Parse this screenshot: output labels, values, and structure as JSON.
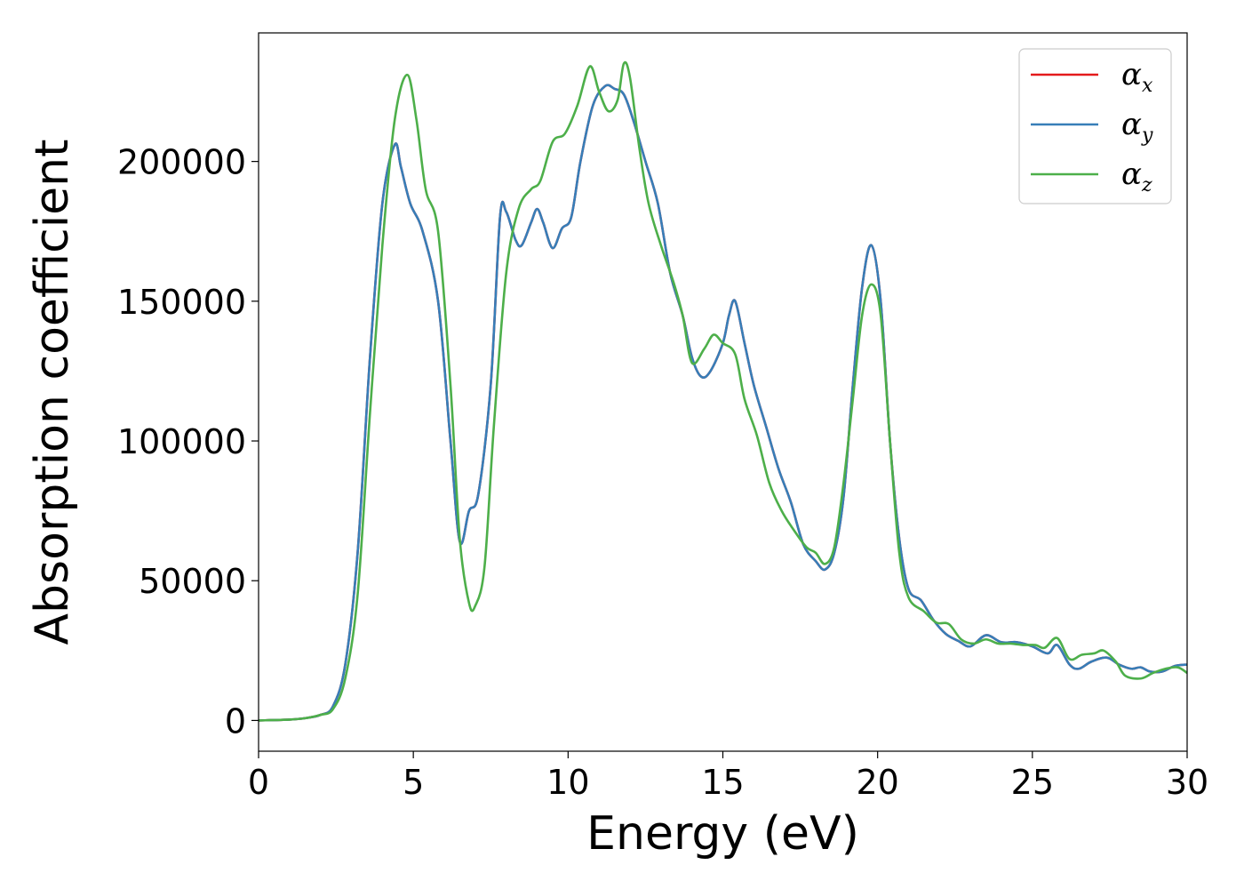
{
  "chart_data": {
    "type": "line",
    "title": "",
    "xlabel": "Energy (eV)",
    "ylabel": "Absorption coefficient",
    "xlim": [
      0,
      30
    ],
    "ylim": [
      -11000,
      246000
    ],
    "xticks": [
      0,
      5,
      10,
      15,
      20,
      25,
      30
    ],
    "yticks": [
      0,
      50000,
      100000,
      150000,
      200000
    ],
    "grid": false,
    "legend_position": "top-right",
    "series": [
      {
        "name": "α",
        "subscript": "x",
        "color": "#e41a1c",
        "points": [
          [
            0,
            0
          ],
          [
            1,
            300
          ],
          [
            1.5,
            800
          ],
          [
            2,
            2000
          ],
          [
            2.4,
            5000
          ],
          [
            2.8,
            20000
          ],
          [
            3.2,
            60000
          ],
          [
            3.6,
            130000
          ],
          [
            4.0,
            185000
          ],
          [
            4.4,
            206000
          ],
          [
            4.6,
            198000
          ],
          [
            4.9,
            185000
          ],
          [
            5.3,
            175000
          ],
          [
            5.8,
            150000
          ],
          [
            6.2,
            100000
          ],
          [
            6.5,
            64000
          ],
          [
            6.8,
            75000
          ],
          [
            7.1,
            81000
          ],
          [
            7.5,
            120000
          ],
          [
            7.8,
            180000
          ],
          [
            8.0,
            182000
          ],
          [
            8.3,
            172000
          ],
          [
            8.5,
            170000
          ],
          [
            8.8,
            178000
          ],
          [
            9.0,
            183000
          ],
          [
            9.2,
            178000
          ],
          [
            9.5,
            169000
          ],
          [
            9.8,
            176000
          ],
          [
            10.1,
            180000
          ],
          [
            10.4,
            200000
          ],
          [
            10.8,
            220000
          ],
          [
            11.2,
            227000
          ],
          [
            11.5,
            226000
          ],
          [
            11.8,
            224000
          ],
          [
            12.1,
            215000
          ],
          [
            12.5,
            200000
          ],
          [
            12.9,
            185000
          ],
          [
            13.3,
            160000
          ],
          [
            13.7,
            145000
          ],
          [
            14.0,
            130000
          ],
          [
            14.3,
            123000
          ],
          [
            14.6,
            125000
          ],
          [
            15.0,
            135000
          ],
          [
            15.2,
            145000
          ],
          [
            15.4,
            150000
          ],
          [
            15.7,
            135000
          ],
          [
            16.0,
            120000
          ],
          [
            16.4,
            105000
          ],
          [
            16.8,
            90000
          ],
          [
            17.2,
            78000
          ],
          [
            17.6,
            63000
          ],
          [
            18.0,
            57000
          ],
          [
            18.3,
            54000
          ],
          [
            18.6,
            60000
          ],
          [
            18.9,
            80000
          ],
          [
            19.2,
            120000
          ],
          [
            19.5,
            155000
          ],
          [
            19.8,
            170000
          ],
          [
            20.1,
            150000
          ],
          [
            20.4,
            100000
          ],
          [
            20.7,
            65000
          ],
          [
            21.0,
            47000
          ],
          [
            21.4,
            43000
          ],
          [
            21.8,
            36000
          ],
          [
            22.2,
            31000
          ],
          [
            22.6,
            28500
          ],
          [
            23.0,
            26500
          ],
          [
            23.5,
            30500
          ],
          [
            24.0,
            28000
          ],
          [
            24.5,
            28000
          ],
          [
            25.0,
            26500
          ],
          [
            25.5,
            24000
          ],
          [
            25.8,
            27000
          ],
          [
            26.2,
            20000
          ],
          [
            26.5,
            18500
          ],
          [
            26.9,
            21000
          ],
          [
            27.4,
            22500
          ],
          [
            27.8,
            20000
          ],
          [
            28.2,
            18500
          ],
          [
            28.5,
            19000
          ],
          [
            28.8,
            17500
          ],
          [
            29.2,
            17500
          ],
          [
            29.6,
            19500
          ],
          [
            30.0,
            20000
          ]
        ]
      },
      {
        "name": "α",
        "subscript": "y",
        "color": "#377eb8",
        "points": [
          [
            0,
            0
          ],
          [
            1,
            300
          ],
          [
            1.5,
            800
          ],
          [
            2,
            2000
          ],
          [
            2.4,
            5000
          ],
          [
            2.8,
            20000
          ],
          [
            3.2,
            60000
          ],
          [
            3.6,
            130000
          ],
          [
            4.0,
            185000
          ],
          [
            4.4,
            206000
          ],
          [
            4.6,
            198000
          ],
          [
            4.9,
            185000
          ],
          [
            5.3,
            175000
          ],
          [
            5.8,
            150000
          ],
          [
            6.2,
            100000
          ],
          [
            6.5,
            64000
          ],
          [
            6.8,
            75000
          ],
          [
            7.1,
            81000
          ],
          [
            7.5,
            120000
          ],
          [
            7.8,
            180000
          ],
          [
            8.0,
            182000
          ],
          [
            8.3,
            172000
          ],
          [
            8.5,
            170000
          ],
          [
            8.8,
            178000
          ],
          [
            9.0,
            183000
          ],
          [
            9.2,
            178000
          ],
          [
            9.5,
            169000
          ],
          [
            9.8,
            176000
          ],
          [
            10.1,
            180000
          ],
          [
            10.4,
            200000
          ],
          [
            10.8,
            220000
          ],
          [
            11.2,
            227000
          ],
          [
            11.5,
            226000
          ],
          [
            11.8,
            224000
          ],
          [
            12.1,
            215000
          ],
          [
            12.5,
            200000
          ],
          [
            12.9,
            185000
          ],
          [
            13.3,
            160000
          ],
          [
            13.7,
            145000
          ],
          [
            14.0,
            130000
          ],
          [
            14.3,
            123000
          ],
          [
            14.6,
            125000
          ],
          [
            15.0,
            135000
          ],
          [
            15.2,
            145000
          ],
          [
            15.4,
            150000
          ],
          [
            15.7,
            135000
          ],
          [
            16.0,
            120000
          ],
          [
            16.4,
            105000
          ],
          [
            16.8,
            90000
          ],
          [
            17.2,
            78000
          ],
          [
            17.6,
            63000
          ],
          [
            18.0,
            57000
          ],
          [
            18.3,
            54000
          ],
          [
            18.6,
            60000
          ],
          [
            18.9,
            80000
          ],
          [
            19.2,
            120000
          ],
          [
            19.5,
            155000
          ],
          [
            19.8,
            170000
          ],
          [
            20.1,
            150000
          ],
          [
            20.4,
            100000
          ],
          [
            20.7,
            65000
          ],
          [
            21.0,
            47000
          ],
          [
            21.4,
            43000
          ],
          [
            21.8,
            36000
          ],
          [
            22.2,
            31000
          ],
          [
            22.6,
            28500
          ],
          [
            23.0,
            26500
          ],
          [
            23.5,
            30500
          ],
          [
            24.0,
            28000
          ],
          [
            24.5,
            28000
          ],
          [
            25.0,
            26500
          ],
          [
            25.5,
            24000
          ],
          [
            25.8,
            27000
          ],
          [
            26.2,
            20000
          ],
          [
            26.5,
            18500
          ],
          [
            26.9,
            21000
          ],
          [
            27.4,
            22500
          ],
          [
            27.8,
            20000
          ],
          [
            28.2,
            18500
          ],
          [
            28.5,
            19000
          ],
          [
            28.8,
            17500
          ],
          [
            29.2,
            17500
          ],
          [
            29.6,
            19500
          ],
          [
            30.0,
            20000
          ]
        ]
      },
      {
        "name": "α",
        "subscript": "z",
        "color": "#4daf4a",
        "points": [
          [
            0,
            0
          ],
          [
            1,
            300
          ],
          [
            1.5,
            800
          ],
          [
            2,
            2000
          ],
          [
            2.4,
            4000
          ],
          [
            2.8,
            15000
          ],
          [
            3.2,
            45000
          ],
          [
            3.6,
            110000
          ],
          [
            4.0,
            170000
          ],
          [
            4.4,
            215000
          ],
          [
            4.8,
            231000
          ],
          [
            5.1,
            215000
          ],
          [
            5.4,
            190000
          ],
          [
            5.8,
            175000
          ],
          [
            6.2,
            120000
          ],
          [
            6.5,
            65000
          ],
          [
            6.8,
            42000
          ],
          [
            7.0,
            41000
          ],
          [
            7.3,
            55000
          ],
          [
            7.6,
            105000
          ],
          [
            8.0,
            160000
          ],
          [
            8.4,
            183000
          ],
          [
            8.8,
            190000
          ],
          [
            9.1,
            193000
          ],
          [
            9.5,
            207000
          ],
          [
            9.9,
            210000
          ],
          [
            10.3,
            220000
          ],
          [
            10.7,
            234000
          ],
          [
            11.0,
            225000
          ],
          [
            11.3,
            218000
          ],
          [
            11.6,
            222000
          ],
          [
            11.8,
            235000
          ],
          [
            12.0,
            230000
          ],
          [
            12.3,
            205000
          ],
          [
            12.6,
            185000
          ],
          [
            13.0,
            170000
          ],
          [
            13.4,
            157000
          ],
          [
            13.7,
            145000
          ],
          [
            14.0,
            128000
          ],
          [
            14.4,
            133000
          ],
          [
            14.7,
            138000
          ],
          [
            15.0,
            135000
          ],
          [
            15.4,
            131000
          ],
          [
            15.7,
            115000
          ],
          [
            16.1,
            102000
          ],
          [
            16.5,
            85000
          ],
          [
            16.9,
            75000
          ],
          [
            17.3,
            68000
          ],
          [
            17.7,
            62000
          ],
          [
            18.0,
            60000
          ],
          [
            18.3,
            56000
          ],
          [
            18.6,
            62000
          ],
          [
            18.9,
            85000
          ],
          [
            19.2,
            115000
          ],
          [
            19.5,
            145000
          ],
          [
            19.8,
            156000
          ],
          [
            20.1,
            145000
          ],
          [
            20.4,
            100000
          ],
          [
            20.7,
            60000
          ],
          [
            21.0,
            44000
          ],
          [
            21.5,
            39000
          ],
          [
            21.9,
            35000
          ],
          [
            22.3,
            34500
          ],
          [
            22.7,
            29000
          ],
          [
            23.1,
            27500
          ],
          [
            23.5,
            29000
          ],
          [
            23.9,
            27500
          ],
          [
            24.3,
            27500
          ],
          [
            24.7,
            27000
          ],
          [
            25.1,
            27000
          ],
          [
            25.4,
            26000
          ],
          [
            25.8,
            29500
          ],
          [
            26.2,
            22000
          ],
          [
            26.6,
            23500
          ],
          [
            27.0,
            24000
          ],
          [
            27.3,
            25000
          ],
          [
            27.7,
            21000
          ],
          [
            28.0,
            16000
          ],
          [
            28.5,
            15000
          ],
          [
            28.9,
            17000
          ],
          [
            29.3,
            18500
          ],
          [
            29.7,
            19000
          ],
          [
            30.0,
            17000
          ]
        ]
      }
    ]
  }
}
